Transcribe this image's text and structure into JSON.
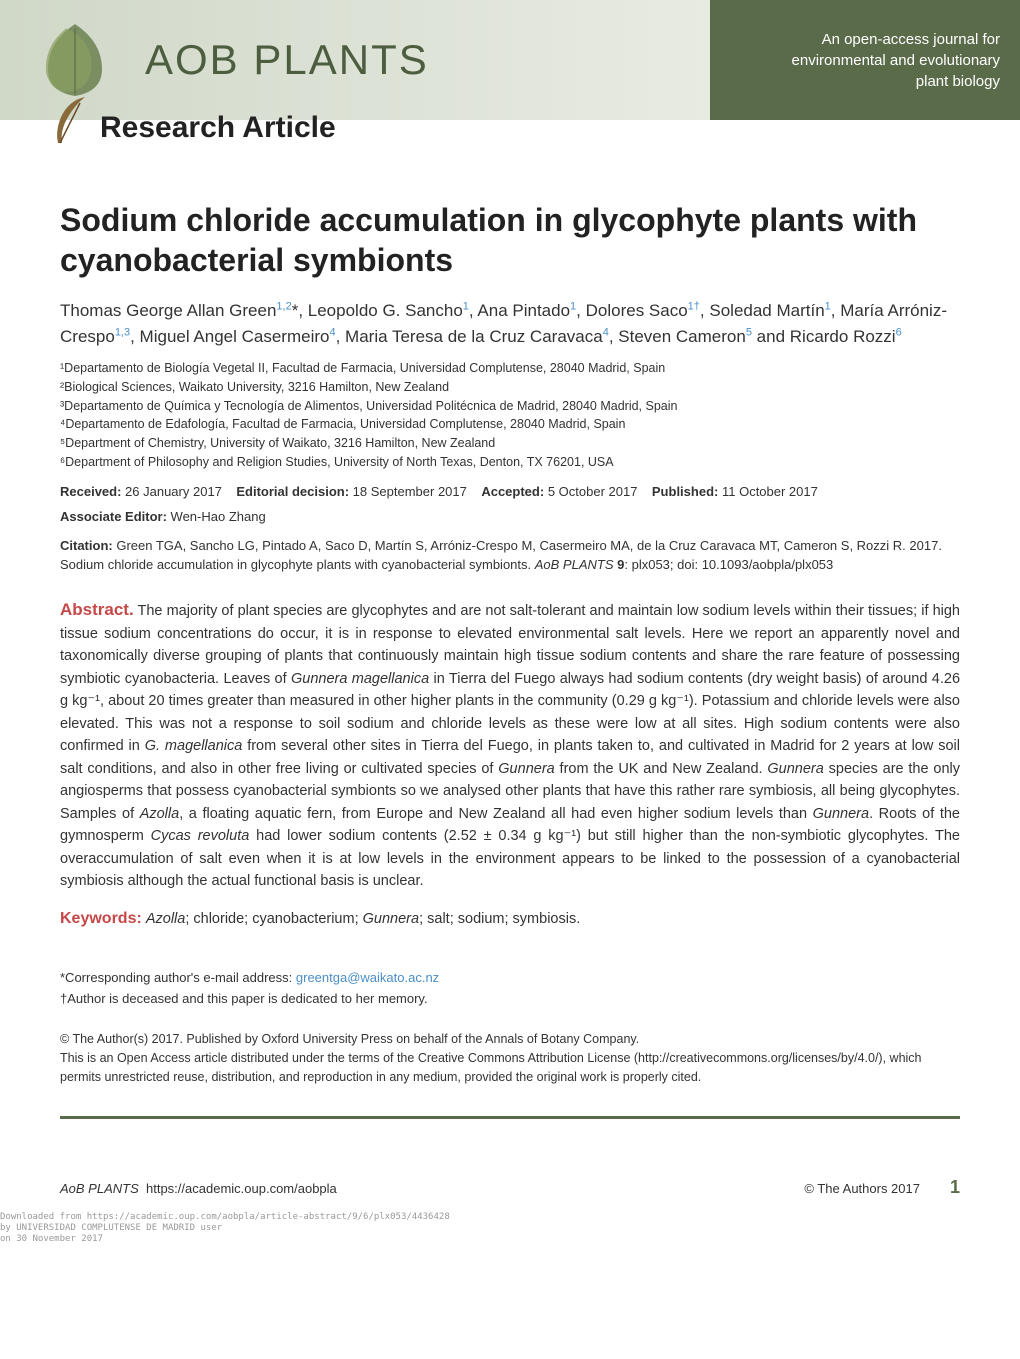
{
  "banner": {
    "journal_title": "AOB PLANTS",
    "tagline_line1": "An open-access journal for",
    "tagline_line2": "environmental and evolutionary",
    "tagline_line3": "plant biology",
    "article_type": "Research Article",
    "bg_left_gradient_start": "#d0d8c8",
    "bg_left_gradient_end": "#e8ebe2",
    "bg_right": "#5a6b4a",
    "leaf_color": "#6a8050",
    "feather_color": "#8a6a3a"
  },
  "article": {
    "title": "Sodium chloride accumulation in glycophyte plants with cyanobacterial symbionts",
    "authors_html": "Thomas George Allan Green<sup class='ref-link'>1,2</sup>*, Leopoldo G. Sancho<sup class='ref-link'>1</sup>, Ana Pintado<sup class='ref-link'>1</sup>, Dolores Saco<sup class='ref-link'>1†</sup>, Soledad Martín<sup class='ref-link'>1</sup>, María Arróniz-Crespo<sup class='ref-link'>1,3</sup>, Miguel Angel Casermeiro<sup class='ref-link'>4</sup>, Maria Teresa de la Cruz Caravaca<sup class='ref-link'>4</sup>, Steven Cameron<sup class='ref-link'>5</sup> and Ricardo Rozzi<sup class='ref-link'>6</sup>",
    "affiliations": [
      "¹Departamento de Biología Vegetal II, Facultad de Farmacia, Universidad Complutense, 28040 Madrid, Spain",
      "²Biological Sciences, Waikato University, 3216 Hamilton, New Zealand",
      "³Departamento de Química y Tecnología de Alimentos, Universidad Politécnica de Madrid, 28040 Madrid, Spain",
      "⁴Departamento de Edafología, Facultad de Farmacia, Universidad Complutense, 28040 Madrid, Spain",
      "⁵Department of Chemistry, University of Waikato, 3216 Hamilton, New Zealand",
      "⁶Department of Philosophy and Religion Studies, University of North Texas, Denton, TX 76201, USA"
    ],
    "dates": {
      "received_label": "Received:",
      "received": "26 January 2017",
      "decision_label": "Editorial decision:",
      "decision": "18 September 2017",
      "accepted_label": "Accepted:",
      "accepted": "5 October 2017",
      "published_label": "Published:",
      "published": "11 October 2017"
    },
    "associate_editor_label": "Associate Editor:",
    "associate_editor": "Wen-Hao Zhang",
    "citation_label": "Citation:",
    "citation_text": "Green TGA, Sancho LG, Pintado A, Saco D, Martín S, Arróniz-Crespo M, Casermeiro MA, de la Cruz Caravaca MT, Cameron S, Rozzi R. 2017. Sodium chloride accumulation in glycophyte plants with cyanobacterial symbionts. <span class='italic'>AoB PLANTS</span> <b>9</b>: plx053; doi: 10.1093/aobpla/plx053",
    "abstract_label": "Abstract.",
    "abstract_text": "The majority of plant species are glycophytes and are not salt-tolerant and maintain low sodium levels within their tissues; if high tissue sodium concentrations do occur, it is in response to elevated environmental salt levels. Here we report an apparently novel and taxonomically diverse grouping of plants that continuously maintain high tissue sodium contents and share the rare feature of possessing symbiotic cyanobacteria. Leaves of <span class='italic'>Gunnera magellanica</span> in Tierra del Fuego always had sodium contents (dry weight basis) of around 4.26 g kg⁻¹, about 20 times greater than measured in other higher plants in the community (0.29 g kg⁻¹). Potassium and chloride levels were also elevated. This was not a response to soil sodium and chloride levels as these were low at all sites. High sodium contents were also confirmed in <span class='italic'>G. magellanica</span> from several other sites in Tierra del Fuego, in plants taken to, and cultivated in Madrid for 2 years at low soil salt conditions, and also in other free living or cultivated species of <span class='italic'>Gunnera</span> from the UK and New Zealand. <span class='italic'>Gunnera</span> species are the only angiosperms that possess cyanobacterial symbionts so we analysed other plants that have this rather rare symbiosis, all being glycophytes. Samples of <span class='italic'>Azolla</span>, a floating aquatic fern, from Europe and New Zealand all had even higher sodium levels than <span class='italic'>Gunnera</span>. Roots of the gymnosperm <span class='italic'>Cycas revoluta</span> had lower sodium contents (2.52 ± 0.34 g kg⁻¹) but still higher than the non-symbiotic glycophytes. The overaccumulation of salt even when it is at low levels in the environment appears to be linked to the possession of a cyanobacterial symbiosis although the actual functional basis is unclear.",
    "keywords_label": "Keywords:",
    "keywords_text": "<span class='italic'>Azolla</span>; chloride; cyanobacterium; <span class='italic'>Gunnera</span>; salt; sodium; symbiosis.",
    "corresponding_line1": "*Corresponding author's e-mail address: ",
    "corresponding_email": "greentga@waikato.ac.nz",
    "corresponding_line2": "†Author is deceased and this paper is dedicated to her memory.",
    "license_line1": "© The Author(s) 2017. Published by Oxford University Press on behalf of the Annals of Botany Company.",
    "license_line2": "This is an Open Access article distributed under the terms of the Creative Commons Attribution License (http://creativecommons.org/licenses/by/4.0/), which permits unrestricted reuse, distribution, and reproduction in any medium, provided the original work is properly cited."
  },
  "footer": {
    "journal_url_label": "AoB PLANTS",
    "journal_url": "https://academic.oup.com/aobpla",
    "copyright": "© The Authors 2017",
    "page_number": "1",
    "download_line1": "Downloaded from https://academic.oup.com/aobpla/article-abstract/9/6/plx053/4436428",
    "download_line2": "by UNIVERSIDAD COMPLUTENSE DE MADRID user",
    "download_line3": "on 30 November 2017"
  },
  "colors": {
    "accent_red": "#c74848",
    "link_blue": "#4a8fc7",
    "divider_green": "#5a6b4a"
  }
}
